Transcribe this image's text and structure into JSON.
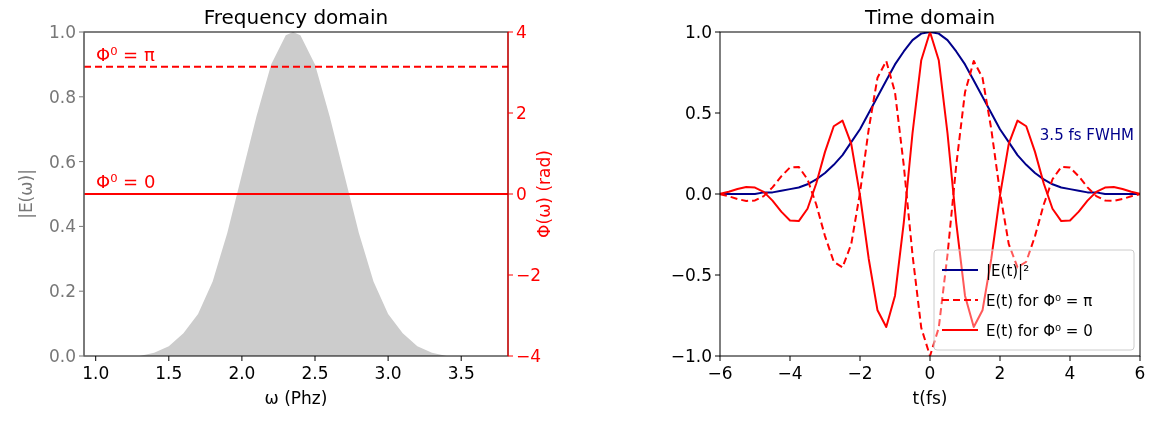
{
  "chart_data": [
    {
      "type": "area",
      "title": "Frequency domain",
      "xlabel": "ω (Phz)",
      "ylabel": "|E(ω)|",
      "y2label": "Φ(ω) (rad)",
      "xlim": [
        0.92,
        3.82
      ],
      "xticks": [
        {
          "value": 1,
          "label": "1.0"
        },
        {
          "value": 1.5,
          "label": "1.5"
        },
        {
          "value": 2,
          "label": "2.0"
        },
        {
          "value": 2.5,
          "label": "2.5"
        },
        {
          "value": 3,
          "label": "3.0"
        },
        {
          "value": 3.5,
          "label": "3.5"
        }
      ],
      "ylim": [
        0,
        1
      ],
      "yticks": [
        {
          "value": 0,
          "label": "0.0"
        },
        {
          "value": 0.2,
          "label": "0.2"
        },
        {
          "value": 0.4,
          "label": "0.4"
        },
        {
          "value": 0.6,
          "label": "0.6"
        },
        {
          "value": 0.8,
          "label": "0.8"
        },
        {
          "value": 1,
          "label": "1.0"
        }
      ],
      "y2lim": [
        -4,
        4
      ],
      "y2ticks": [
        {
          "value": -4,
          "label": "−4"
        },
        {
          "value": -2,
          "label": "−2"
        },
        0,
        2,
        4
      ],
      "series": [
        {
          "color": "#cccccc",
          "x": [
            0.92,
            1.0,
            1.1,
            1.2,
            1.3,
            1.4,
            1.5,
            1.6,
            1.7,
            1.8,
            1.9,
            2.0,
            2.1,
            2.2,
            2.3,
            2.35,
            2.4,
            2.5,
            2.6,
            2.7,
            2.8,
            2.9,
            3.0,
            3.1,
            3.2,
            3.3,
            3.4,
            3.5,
            3.6,
            3.7,
            3.82
          ],
          "values": [
            0,
            0,
            0,
            0,
            0,
            0.01,
            0.03,
            0.07,
            0.13,
            0.23,
            0.38,
            0.56,
            0.74,
            0.9,
            0.99,
            1,
            0.99,
            0.9,
            0.74,
            0.56,
            0.38,
            0.23,
            0.13,
            0.07,
            0.03,
            0.01,
            0,
            0,
            0,
            0,
            0
          ]
        }
      ],
      "ref_lines": [
        {
          "axis": "y2",
          "value": 3.14,
          "label": "Φ⁰ = π",
          "color": "#ff0000",
          "line_style": "dashed"
        },
        {
          "axis": "y2",
          "value": 0,
          "label": "Φ⁰ = 0",
          "color": "#ff0000",
          "line_style": "solid"
        }
      ]
    },
    {
      "type": "line",
      "title": "Time domain",
      "xlabel": "t(fs)",
      "legend": "bottom right",
      "annotations": [
        "3.5 fs FWHM"
      ],
      "xlim": [
        -6,
        6
      ],
      "xticks": [
        {
          "value": -6,
          "label": "−6"
        },
        {
          "value": -4,
          "label": "−4"
        },
        {
          "value": -2,
          "label": "−2"
        },
        0,
        2,
        4,
        6
      ],
      "ylim": [
        -1,
        1
      ],
      "yticks": [
        {
          "value": -1,
          "label": "−1.0"
        },
        {
          "value": -0.5,
          "label": "−0.5"
        },
        {
          "value": 0,
          "label": "0.0"
        },
        {
          "value": 0.5,
          "label": "0.5"
        },
        {
          "value": 1,
          "label": "1.0"
        }
      ],
      "x": [
        -6,
        -5.75,
        -5.5,
        -5.25,
        -5,
        -4.75,
        -4.5,
        -4.25,
        -4,
        -3.75,
        -3.5,
        -3.25,
        -3,
        -2.75,
        -2.5,
        -2.25,
        -2,
        -1.75,
        -1.5,
        -1.25,
        -1,
        -0.75,
        -0.5,
        -0.25,
        0,
        0.25,
        0.5,
        0.75,
        1,
        1.25,
        1.5,
        1.75,
        2,
        2.25,
        2.5,
        2.75,
        3,
        3.25,
        3.5,
        3.75,
        4,
        4.25,
        4.5,
        4.75,
        5,
        5.25,
        5.5,
        5.75,
        6
      ],
      "series": [
        {
          "name": "|E(t)|²",
          "color": "#00008b",
          "line_style": "solid",
          "values": [
            0,
            0,
            0,
            0,
            0,
            0.01,
            0.01,
            0.02,
            0.03,
            0.04,
            0.06,
            0.09,
            0.13,
            0.18,
            0.24,
            0.32,
            0.4,
            0.5,
            0.6,
            0.7,
            0.8,
            0.88,
            0.95,
            0.99,
            1,
            0.99,
            0.95,
            0.88,
            0.8,
            0.7,
            0.6,
            0.5,
            0.4,
            0.32,
            0.24,
            0.18,
            0.13,
            0.09,
            0.06,
            0.04,
            0.03,
            0.02,
            0.01,
            0.01,
            0,
            0,
            0,
            0,
            0
          ]
        },
        {
          "name": "E(t) for Φ⁰ = π",
          "color": "#ff0000",
          "line_style": "dashed",
          "values": [
            -0.001,
            -0.014,
            -0.031,
            -0.043,
            -0.04,
            -0.013,
            0.041,
            0.109,
            0.164,
            0.167,
            0.091,
            -0.065,
            -0.26,
            -0.418,
            -0.453,
            -0.309,
            0.008,
            0.401,
            0.718,
            0.821,
            0.628,
            0.178,
            -0.375,
            -0.826,
            -1,
            -0.826,
            -0.375,
            0.178,
            0.628,
            0.821,
            0.718,
            0.401,
            0.008,
            -0.309,
            -0.453,
            -0.418,
            -0.26,
            -0.065,
            0.091,
            0.167,
            0.164,
            0.109,
            0.041,
            -0.013,
            -0.04,
            -0.043,
            -0.031,
            -0.014,
            -0.001
          ]
        },
        {
          "name": "E(t) for Φ⁰ = 0",
          "color": "#ff0000",
          "line_style": "solid",
          "values": [
            0.001,
            0.014,
            0.031,
            0.043,
            0.04,
            0.013,
            -0.041,
            -0.109,
            -0.164,
            -0.167,
            -0.091,
            0.065,
            0.26,
            0.418,
            0.453,
            0.309,
            -0.008,
            -0.401,
            -0.718,
            -0.821,
            -0.628,
            -0.178,
            0.375,
            0.826,
            1,
            0.826,
            0.375,
            -0.178,
            -0.628,
            -0.821,
            -0.718,
            -0.401,
            -0.008,
            0.309,
            0.453,
            0.418,
            0.26,
            0.065,
            -0.091,
            -0.167,
            -0.164,
            -0.109,
            -0.041,
            0.013,
            0.04,
            0.043,
            0.031,
            0.014,
            0.001
          ]
        }
      ]
    }
  ]
}
